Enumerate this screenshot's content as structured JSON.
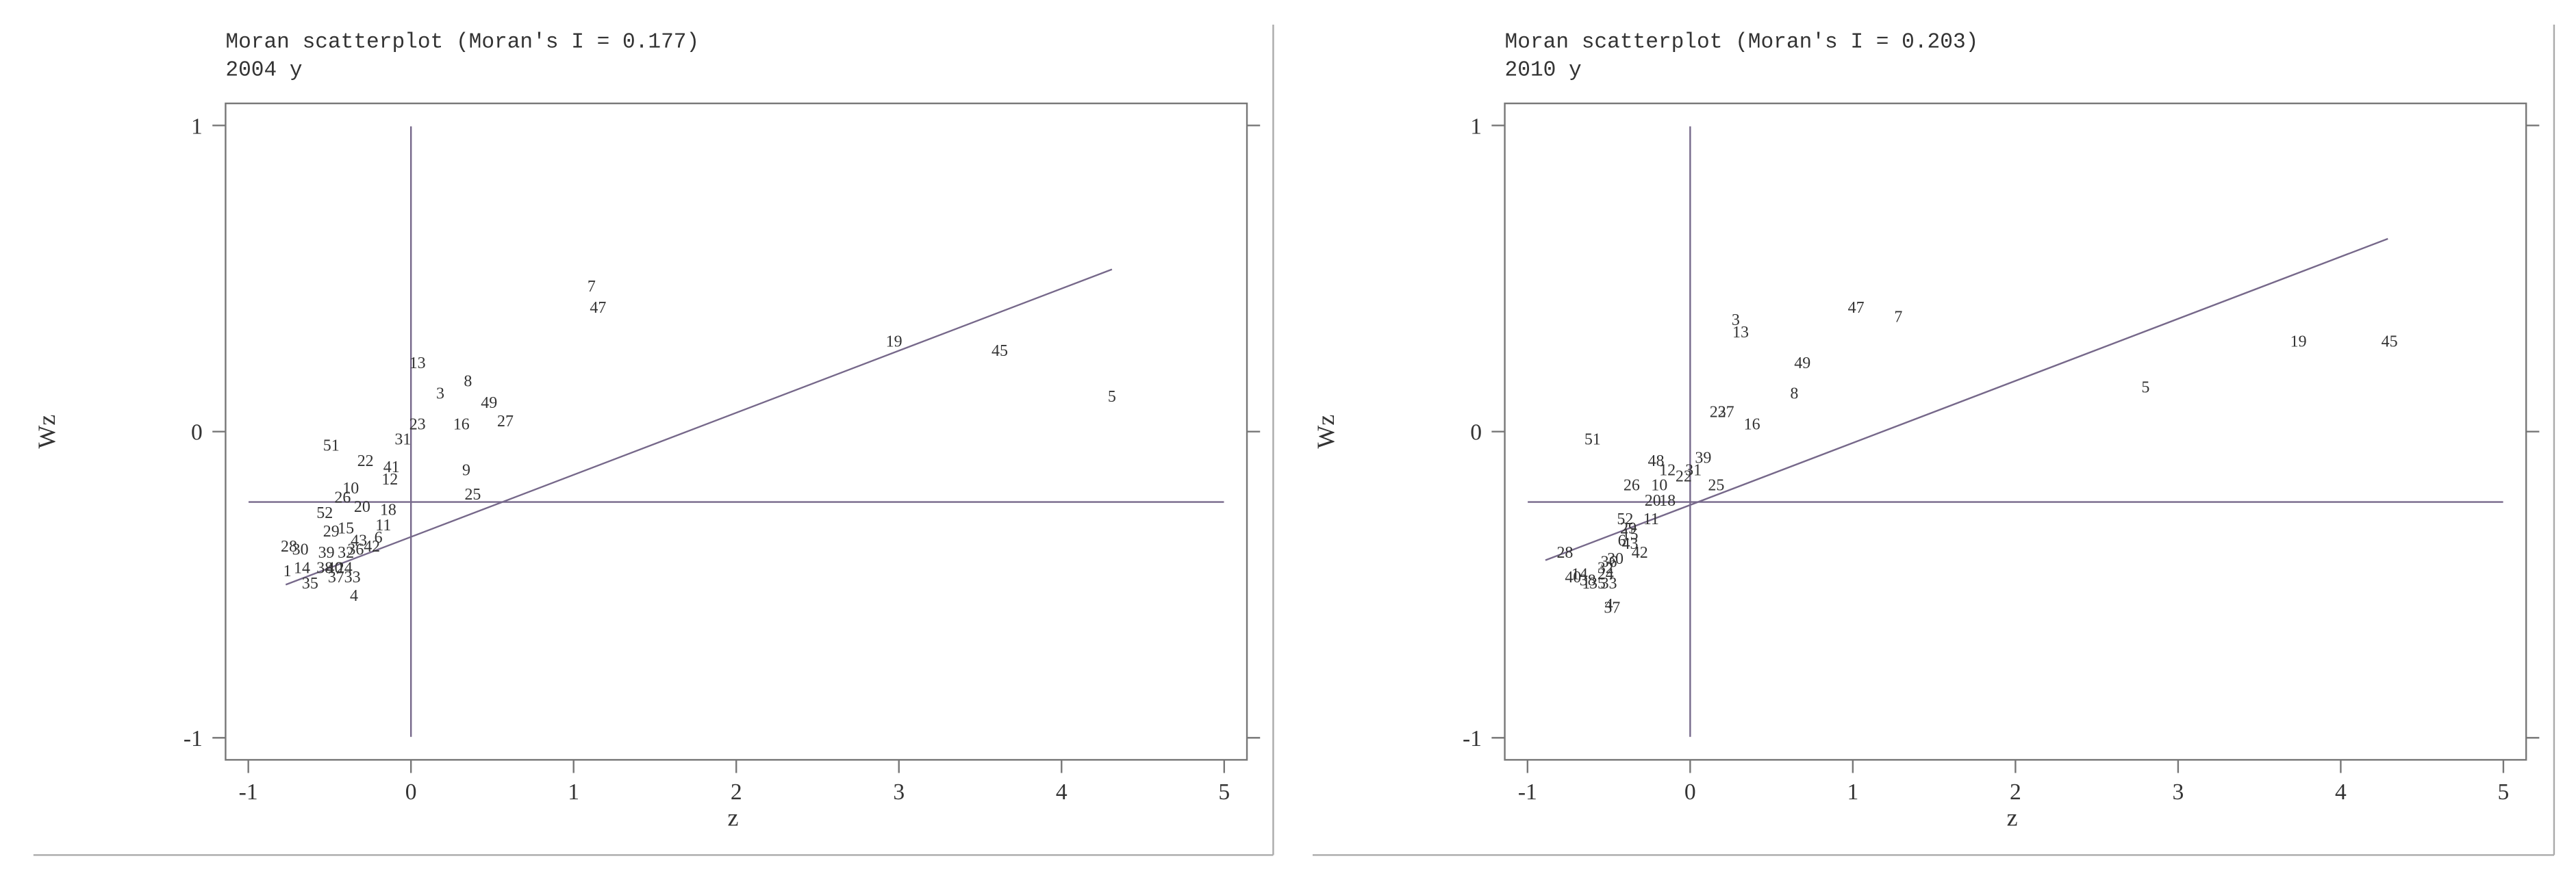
{
  "chart_data": [
    {
      "type": "scatter",
      "title": "Moran scatterplot (Moran's I = 0.177)",
      "subtitle": "2004 y",
      "x_label": "z",
      "y_label": "Wz",
      "xlim": [
        -1.14,
        5.14
      ],
      "ylim": [
        -1.072,
        1.072
      ],
      "xticks": [
        -1,
        0,
        1,
        2,
        3,
        4,
        5
      ],
      "yticks": [
        -1,
        0,
        1
      ],
      "color": "#333333",
      "line_color": "#76688a",
      "hline": -0.23,
      "vline": 0,
      "fit": {
        "x": [
          -0.77,
          4.31
        ],
        "y": [
          -0.5,
          0.53
        ]
      },
      "labels": [
        "7",
        "47",
        "19",
        "45",
        "5",
        "13",
        "8",
        "3",
        "49",
        "27",
        "16",
        "23",
        "31",
        "51",
        "22",
        "41",
        "12",
        "9",
        "25",
        "10",
        "26",
        "20",
        "18",
        "52",
        "11",
        "29",
        "15",
        "6",
        "43",
        "42",
        "28",
        "30",
        "39",
        "32",
        "36",
        "14",
        "38",
        "40",
        "24",
        "1",
        "35",
        "37",
        "33",
        "4"
      ],
      "x": [
        1.11,
        1.15,
        2.97,
        3.62,
        4.31,
        0.04,
        0.35,
        0.18,
        0.48,
        0.58,
        0.31,
        0.04,
        -0.05,
        -0.49,
        -0.28,
        -0.12,
        -0.13,
        0.34,
        0.38,
        -0.37,
        -0.42,
        -0.3,
        -0.14,
        -0.53,
        -0.17,
        -0.49,
        -0.4,
        -0.2,
        -0.32,
        -0.24,
        -0.75,
        -0.68,
        -0.52,
        -0.4,
        -0.34,
        -0.67,
        -0.53,
        -0.47,
        -0.41,
        -0.76,
        -0.62,
        -0.46,
        -0.36,
        -0.35
      ],
      "y": [
        0.47,
        0.4,
        0.29,
        0.26,
        0.11,
        0.22,
        0.16,
        0.12,
        0.09,
        0.03,
        0.02,
        0.02,
        -0.03,
        -0.05,
        -0.1,
        -0.12,
        -0.16,
        -0.13,
        -0.21,
        -0.19,
        -0.22,
        -0.25,
        -0.26,
        -0.27,
        -0.31,
        -0.33,
        -0.32,
        -0.35,
        -0.36,
        -0.38,
        -0.38,
        -0.39,
        -0.4,
        -0.4,
        -0.39,
        -0.45,
        -0.45,
        -0.45,
        -0.45,
        -0.46,
        -0.5,
        -0.48,
        -0.48,
        -0.54
      ]
    },
    {
      "type": "scatter",
      "title": "Moran scatterplot (Moran's I = 0.203)",
      "subtitle": "2010 y",
      "x_label": "z",
      "y_label": "Wz",
      "xlim": [
        -1.14,
        5.14
      ],
      "ylim": [
        -1.072,
        1.072
      ],
      "xticks": [
        -1,
        0,
        1,
        2,
        3,
        4,
        5
      ],
      "yticks": [
        -1,
        0,
        1
      ],
      "color": "#333333",
      "line_color": "#76688a",
      "hline": -0.23,
      "vline": 0,
      "fit": {
        "x": [
          -0.89,
          4.29
        ],
        "y": [
          -0.42,
          0.63
        ]
      },
      "labels": [
        "3",
        "13",
        "47",
        "7",
        "49",
        "8",
        "19",
        "45",
        "5",
        "23",
        "27",
        "16",
        "51",
        "39",
        "48",
        "12",
        "31",
        "22",
        "25",
        "26",
        "10",
        "20",
        "18",
        "52",
        "11",
        "29",
        "15",
        "6",
        "43",
        "42",
        "28",
        "30",
        "36",
        "32",
        "24",
        "40",
        "14",
        "38",
        "33",
        "35",
        "1",
        "4",
        "37"
      ],
      "x": [
        0.28,
        0.31,
        1.02,
        1.28,
        0.69,
        0.64,
        3.74,
        4.3,
        2.8,
        0.17,
        0.22,
        0.38,
        -0.6,
        0.08,
        -0.21,
        -0.14,
        0.02,
        -0.04,
        0.16,
        -0.36,
        -0.19,
        -0.23,
        -0.14,
        -0.4,
        -0.24,
        -0.38,
        -0.37,
        -0.42,
        -0.37,
        -0.31,
        -0.77,
        -0.46,
        -0.5,
        -0.52,
        -0.52,
        -0.72,
        -0.68,
        -0.63,
        -0.5,
        -0.57,
        -0.64,
        -0.5,
        -0.48
      ],
      "y": [
        0.36,
        0.32,
        0.4,
        0.37,
        0.22,
        0.12,
        0.29,
        0.29,
        0.14,
        0.06,
        0.06,
        0.02,
        -0.03,
        -0.09,
        -0.1,
        -0.13,
        -0.13,
        -0.15,
        -0.18,
        -0.18,
        -0.18,
        -0.23,
        -0.23,
        -0.29,
        -0.29,
        -0.32,
        -0.34,
        -0.36,
        -0.37,
        -0.4,
        -0.4,
        -0.42,
        -0.43,
        -0.45,
        -0.47,
        -0.48,
        -0.47,
        -0.49,
        -0.5,
        -0.5,
        -0.5,
        -0.57,
        -0.58
      ]
    }
  ]
}
